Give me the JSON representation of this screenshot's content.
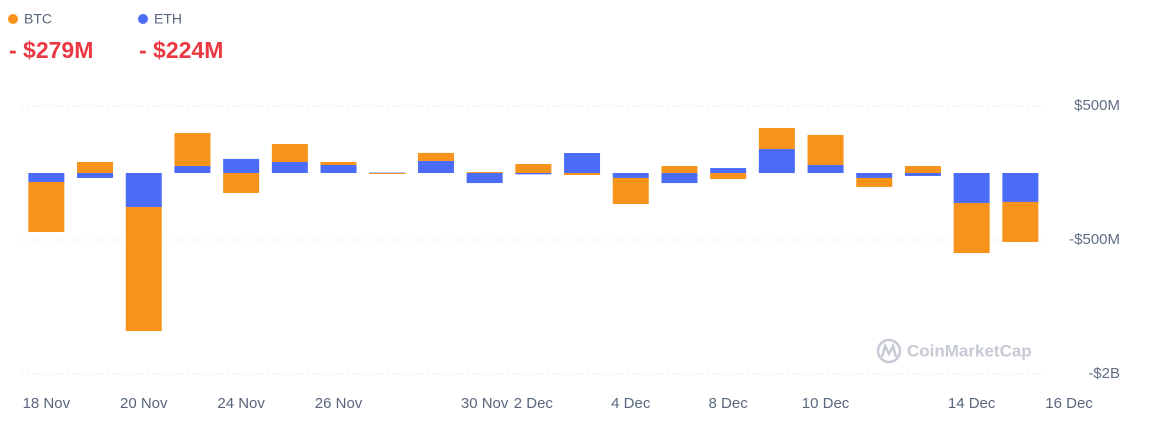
{
  "chart_data": {
    "type": "stacked_bar",
    "series": [
      {
        "name": "ETH",
        "color": "#4a6cf7",
        "total_label": "- $224M",
        "values": [
          -67,
          -37,
          -254,
          52,
          105,
          82,
          60,
          3,
          90,
          -75,
          -10,
          149,
          -37,
          -75,
          37,
          179,
          60,
          -37,
          -22,
          -224,
          -216,
          null
        ]
      },
      {
        "name": "BTC",
        "color": "#f7931a",
        "total_label": "- $279M",
        "values": [
          -373,
          82,
          -1265,
          246,
          -149,
          134,
          22,
          -5,
          60,
          7,
          67,
          -15,
          -194,
          52,
          -45,
          157,
          224,
          -67,
          52,
          -422,
          -306,
          null
        ]
      }
    ],
    "legend_order": [
      1,
      0
    ],
    "categories": [
      "18 Nov",
      null,
      "20 Nov",
      null,
      "24 Nov",
      null,
      "26 Nov",
      null,
      null,
      "30 Nov",
      "2 Dec",
      null,
      "4 Dec",
      null,
      "8 Dec",
      null,
      "10 Dec",
      null,
      null,
      "14 Dec",
      null,
      "16 Dec"
    ],
    "ylim": [
      -2000,
      500
    ],
    "yticks": [
      {
        "value": 500,
        "label": "$500M"
      },
      {
        "value": -500,
        "label": "-$500M"
      },
      {
        "value": -2000,
        "label": "-$2B"
      }
    ],
    "grid": true,
    "watermark": "CoinMarketCap"
  }
}
